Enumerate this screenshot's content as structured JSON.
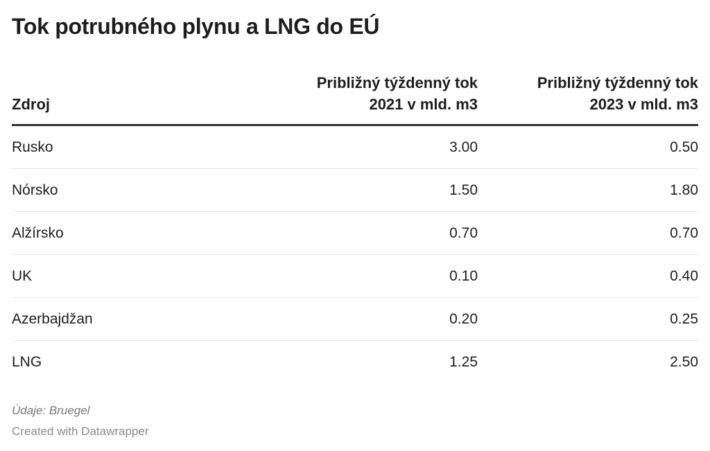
{
  "title": "Tok potrubného plynu a LNG do EÚ",
  "chart_data": {
    "type": "table",
    "title": "Tok potrubného plynu a LNG do EÚ",
    "columns": [
      "Zdroj",
      "Približný týždenný tok 2021 v mld. m3",
      "Približný týždenný tok 2023 v mld. m3"
    ],
    "header_lines": [
      [
        "Zdroj"
      ],
      [
        "Približný týždenný tok",
        "2021 v mld. m3"
      ],
      [
        "Približný týždenný tok",
        "2023 v mld. m3"
      ]
    ],
    "rows": [
      {
        "source": "Rusko",
        "v2021": "3.00",
        "v2023": "0.50"
      },
      {
        "source": "Nórsko",
        "v2021": "1.50",
        "v2023": "1.80"
      },
      {
        "source": "Alžírsko",
        "v2021": "0.70",
        "v2023": "0.70"
      },
      {
        "source": "UK",
        "v2021": "0.10",
        "v2023": "0.40"
      },
      {
        "source": "Azerbajdžan",
        "v2021": "0.20",
        "v2023": "0.25"
      },
      {
        "source": "LNG",
        "v2021": "1.25",
        "v2023": "2.50"
      }
    ]
  },
  "notes": "Údaje: Bruegel",
  "credit": "Created with Datawrapper",
  "colors": {
    "text": "#1d1d1d",
    "header_rule": "#333333",
    "row_rule": "#e5e5e5",
    "muted": "#777777"
  }
}
